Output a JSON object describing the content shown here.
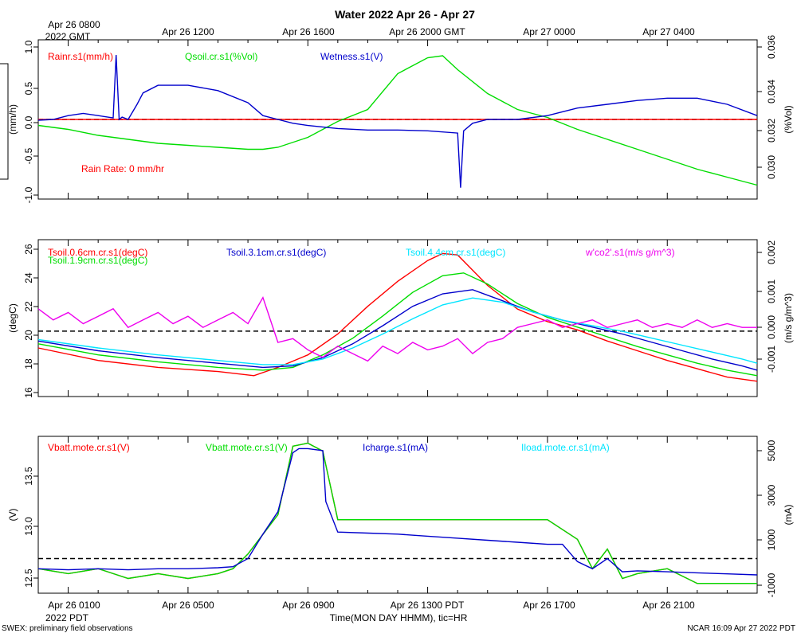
{
  "page": {
    "title": "Water 2022 Apr 26 - Apr 27",
    "top_axis": {
      "first_label": "Apr 26 0800",
      "first_label_line2": "2022 GMT",
      "labels": [
        "Apr 26 1200",
        "Apr 26 1600",
        "Apr 26 2000 GMT",
        "Apr 27 0000",
        "Apr 27 0400"
      ]
    },
    "bottom_axis": {
      "labels": [
        "Apr 26 0100",
        "Apr 26 0500",
        "Apr 26 0900",
        "Apr 26 1300 PDT",
        "Apr 26 1700",
        "Apr 26 2100"
      ],
      "first_label_line2": "2022 PDT",
      "xlabel": "Time(MON DAY HHMM), tic=HR"
    },
    "footer_left": "SWEX: preliminary field observations",
    "footer_right": "NCAR 16:09 Apr 27 2022 PDT",
    "colors": {
      "red": "#ff0000",
      "green": "#00dd00",
      "blue": "#0000cc",
      "cyan": "#00e5ff",
      "magenta": "#ee00ee"
    }
  },
  "chart_data": [
    {
      "type": "line",
      "x_range_hours_pdt": [
        0,
        24
      ],
      "x_ticks_hours": [
        1,
        5,
        9,
        13,
        17,
        21
      ],
      "left_axis": {
        "label": "(mm/h)",
        "ylim": [
          -1.05,
          1.05
        ],
        "ticks": [
          "-1.0",
          "-0.5",
          "0.0",
          "0.5",
          "1.0"
        ]
      },
      "right_axis": {
        "label": "(%Vol)",
        "ylim": [
          0.0285,
          0.0365
        ],
        "ticks": [
          "0.030",
          "0.032",
          "0.034",
          "0.036"
        ]
      },
      "annotation": "Rain Rate: 0 mm/hr",
      "series": [
        {
          "name": "Rainr.s1(mm/h)",
          "color": "#ff0000",
          "axis": "left",
          "x": [
            0,
            24
          ],
          "y": [
            0.0,
            0.0
          ]
        },
        {
          "name": "Qsoil.cr.s1(%Vol)",
          "color": "#00dd00",
          "axis": "right",
          "x": [
            0,
            0.5,
            1,
            2,
            3,
            4,
            5,
            6,
            7,
            7.5,
            8,
            9,
            10,
            11,
            12,
            13,
            13.5,
            14,
            15,
            16,
            17,
            18,
            19,
            20,
            21,
            22,
            23,
            24
          ],
          "y": [
            0.0322,
            0.0321,
            0.032,
            0.0317,
            0.0315,
            0.0313,
            0.0312,
            0.0311,
            0.031,
            0.031,
            0.0311,
            0.0316,
            0.0324,
            0.033,
            0.0348,
            0.0356,
            0.0357,
            0.035,
            0.0338,
            0.033,
            0.0326,
            0.032,
            0.0315,
            0.031,
            0.0305,
            0.03,
            0.0296,
            0.0292
          ]
        },
        {
          "name": "Wetness.s1(V)",
          "color": "#0000cc",
          "axis": "left",
          "x": [
            0,
            0.5,
            1,
            1.5,
            2,
            2.5,
            2.6,
            2.7,
            2.8,
            3,
            3.3,
            3.5,
            4,
            5,
            6,
            7,
            7.5,
            8,
            8.5,
            9,
            10,
            11,
            12,
            13,
            14,
            14.1,
            14.2,
            14.5,
            15,
            16,
            17,
            18,
            19,
            20,
            21,
            22,
            23,
            24
          ],
          "y": [
            -0.01,
            0.0,
            0.05,
            0.08,
            0.05,
            0.02,
            0.85,
            0.0,
            0.03,
            0.0,
            0.2,
            0.35,
            0.45,
            0.45,
            0.38,
            0.22,
            0.05,
            0.0,
            -0.05,
            -0.08,
            -0.12,
            -0.14,
            -0.14,
            -0.15,
            -0.18,
            -0.9,
            -0.15,
            -0.05,
            0.0,
            0.0,
            0.05,
            0.15,
            0.2,
            0.25,
            0.28,
            0.28,
            0.2,
            0.05
          ]
        }
      ]
    },
    {
      "type": "line",
      "x_range_hours_pdt": [
        0,
        24
      ],
      "x_ticks_hours": [
        1,
        5,
        9,
        13,
        17,
        21
      ],
      "left_axis": {
        "label": "(degC)",
        "ylim": [
          15.5,
          26.8
        ],
        "ticks": [
          "16",
          "18",
          "20",
          "22",
          "24",
          "26"
        ]
      },
      "right_axis": {
        "label": "(m/s g/m^3)",
        "ylim": [
          -0.00175,
          0.00245
        ],
        "ticks": [
          "-0.001",
          "0.000",
          "0.001",
          "0.002"
        ]
      },
      "zero_line_right": 0,
      "series": [
        {
          "name": "Tsoil.0.6cm.cr.s1(degC)",
          "color": "#ff0000",
          "axis": "left",
          "x": [
            0,
            2,
            4,
            6,
            7.2,
            8,
            9,
            10,
            11,
            12,
            13,
            13.5,
            14,
            15,
            16,
            17,
            18,
            19,
            20,
            21,
            22,
            23,
            24
          ],
          "y": [
            19.0,
            18.1,
            17.6,
            17.3,
            17.0,
            17.6,
            18.5,
            20.0,
            22.0,
            23.8,
            25.3,
            25.8,
            25.7,
            23.5,
            21.8,
            20.9,
            20.3,
            19.5,
            18.8,
            18.1,
            17.5,
            16.9,
            16.6
          ]
        },
        {
          "name": "Tsoil.1.9cm.cr.s1(degC)",
          "color": "#00dd00",
          "axis": "left",
          "x": [
            0,
            2,
            4,
            6,
            7.5,
            8.5,
            9.5,
            10.5,
            11.5,
            12.5,
            13.5,
            14.2,
            15,
            16,
            17,
            18,
            19,
            20,
            21,
            22,
            23,
            24
          ],
          "y": [
            19.3,
            18.5,
            18.0,
            17.6,
            17.4,
            17.6,
            18.5,
            19.7,
            21.3,
            23.0,
            24.2,
            24.4,
            23.6,
            22.2,
            21.2,
            20.5,
            19.8,
            19.1,
            18.5,
            17.9,
            17.4,
            17.0
          ]
        },
        {
          "name": "Tsoil.3.1cm.cr.s1(degC)",
          "color": "#0000cc",
          "axis": "left",
          "x": [
            0,
            2,
            4,
            6,
            7.5,
            8.5,
            9.5,
            10.5,
            11.5,
            12.5,
            13.5,
            14.5,
            15.5,
            16.5,
            17.5,
            18.5,
            19.5,
            20.5,
            21.5,
            22.5,
            23.5,
            24
          ],
          "y": [
            19.5,
            18.8,
            18.3,
            17.9,
            17.6,
            17.7,
            18.3,
            19.3,
            20.6,
            22.0,
            22.9,
            23.2,
            22.4,
            21.6,
            21.0,
            20.5,
            20.0,
            19.4,
            18.8,
            18.2,
            17.7,
            17.4
          ]
        },
        {
          "name": "Tsoil.4.4cm.cr.s1(degC)",
          "color": "#00e5ff",
          "axis": "left",
          "x": [
            0,
            2,
            4,
            6,
            7.5,
            8.5,
            9.5,
            10.5,
            11.5,
            12.5,
            13.5,
            14.5,
            15.5,
            16.5,
            17.5,
            18.5,
            19.5,
            20.5,
            21.5,
            22.5,
            23.5,
            24
          ],
          "y": [
            19.6,
            19.0,
            18.5,
            18.1,
            17.8,
            17.8,
            18.2,
            19.0,
            20.0,
            21.1,
            22.1,
            22.6,
            22.3,
            21.6,
            21.0,
            20.6,
            20.2,
            19.7,
            19.2,
            18.7,
            18.2,
            17.9
          ]
        },
        {
          "name": "w'co2'.s1(m/s g/m^3)",
          "color": "#ee00ee",
          "axis": "right",
          "x": [
            0,
            0.5,
            1,
            1.5,
            2,
            2.5,
            3,
            3.5,
            4,
            4.5,
            5,
            5.5,
            6,
            6.5,
            7,
            7.5,
            8,
            8.5,
            9,
            9.5,
            10,
            10.5,
            11,
            11.5,
            12,
            12.5,
            13,
            13.5,
            14,
            14.5,
            15,
            15.5,
            16,
            16.5,
            17,
            17.5,
            18,
            18.5,
            19,
            19.5,
            20,
            20.5,
            21,
            21.5,
            22,
            22.5,
            23,
            23.5,
            24
          ],
          "y": [
            0.0006,
            0.0003,
            0.0005,
            0.0002,
            0.0004,
            0.0006,
            0.0001,
            0.0003,
            0.0005,
            0.0002,
            0.0004,
            0.0001,
            0.0003,
            0.0005,
            0.0002,
            0.0009,
            -0.0003,
            -0.0002,
            -0.0005,
            -0.0007,
            -0.0004,
            -0.0006,
            -0.0008,
            -0.0004,
            -0.0006,
            -0.0003,
            -0.0005,
            -0.0004,
            -0.0002,
            -0.0006,
            -0.0003,
            -0.0002,
            0.0001,
            0.0002,
            0.0003,
            0.0001,
            0.0002,
            0.0003,
            0.0001,
            0.0002,
            0.0003,
            0.0001,
            0.0002,
            0.0001,
            0.0003,
            0.0001,
            0.0002,
            0.0001,
            0.0001
          ]
        }
      ]
    },
    {
      "type": "line",
      "x_range_hours_pdt": [
        0,
        24
      ],
      "x_ticks_hours": [
        1,
        5,
        9,
        13,
        17,
        21
      ],
      "left_axis": {
        "label": "(V)",
        "ylim": [
          12.35,
          13.95
        ],
        "ticks": [
          "12.5",
          "13.0",
          "13.5"
        ]
      },
      "right_axis": {
        "label": "(mA)",
        "ylim": [
          -1700,
          6000
        ],
        "ticks": [
          "-1000",
          "1000",
          "3000",
          "5000"
        ]
      },
      "zero_line_right": 0,
      "series": [
        {
          "name": "Vbatt.mote.cr.s1(V)",
          "color": "#ff0000",
          "axis": "left",
          "x": [
            0,
            1,
            2,
            3,
            4,
            5,
            6,
            6.5,
            7,
            7.5,
            8,
            8.5,
            9,
            9.5,
            10,
            11,
            12,
            13,
            14,
            15,
            16,
            17,
            18,
            18.5,
            19,
            19.5,
            20,
            21,
            22,
            23,
            24
          ],
          "y": [
            12.6,
            12.55,
            12.6,
            12.5,
            12.55,
            12.5,
            12.55,
            12.6,
            12.75,
            12.95,
            13.15,
            13.85,
            13.88,
            13.8,
            13.1,
            13.1,
            13.1,
            13.1,
            13.1,
            13.1,
            13.1,
            13.1,
            12.9,
            12.6,
            12.8,
            12.5,
            12.55,
            12.6,
            12.45,
            12.45,
            12.45
          ]
        },
        {
          "name": "Vbatt.mote.cr.s1(V)",
          "color": "#00dd00",
          "axis": "left",
          "x": [
            0,
            1,
            2,
            3,
            4,
            5,
            6,
            6.5,
            7,
            7.5,
            8,
            8.5,
            9,
            9.5,
            10,
            11,
            12,
            13,
            14,
            15,
            16,
            17,
            18,
            18.5,
            19,
            19.5,
            20,
            21,
            22,
            23,
            24
          ],
          "y": [
            12.6,
            12.55,
            12.6,
            12.5,
            12.55,
            12.5,
            12.55,
            12.6,
            12.75,
            12.95,
            13.15,
            13.85,
            13.88,
            13.8,
            13.1,
            13.1,
            13.1,
            13.1,
            13.1,
            13.1,
            13.1,
            13.1,
            12.9,
            12.6,
            12.8,
            12.5,
            12.55,
            12.6,
            12.45,
            12.45,
            12.45
          ]
        },
        {
          "name": "Icharge.s1(mA)",
          "color": "#0000cc",
          "axis": "right",
          "x": [
            0,
            1,
            2,
            3,
            4,
            5,
            6,
            6.5,
            7,
            7.5,
            8,
            8.5,
            8.7,
            9,
            9.5,
            9.6,
            10,
            11,
            12,
            13,
            14,
            15,
            16,
            17,
            17.5,
            18,
            18.5,
            19,
            19.5,
            20,
            21,
            22,
            23,
            24
          ],
          "y": [
            -500,
            -550,
            -500,
            -550,
            -500,
            -500,
            -450,
            -400,
            0,
            1200,
            2300,
            5200,
            5400,
            5400,
            5300,
            2800,
            1300,
            1250,
            1200,
            1100,
            1000,
            900,
            800,
            700,
            700,
            -150,
            -500,
            0,
            -650,
            -600,
            -650,
            -700,
            -750,
            -800
          ]
        },
        {
          "name": "Iload.mote.cr.s1(mA)",
          "color": "#00e5ff",
          "axis": "right",
          "x": [],
          "y": []
        }
      ]
    }
  ]
}
